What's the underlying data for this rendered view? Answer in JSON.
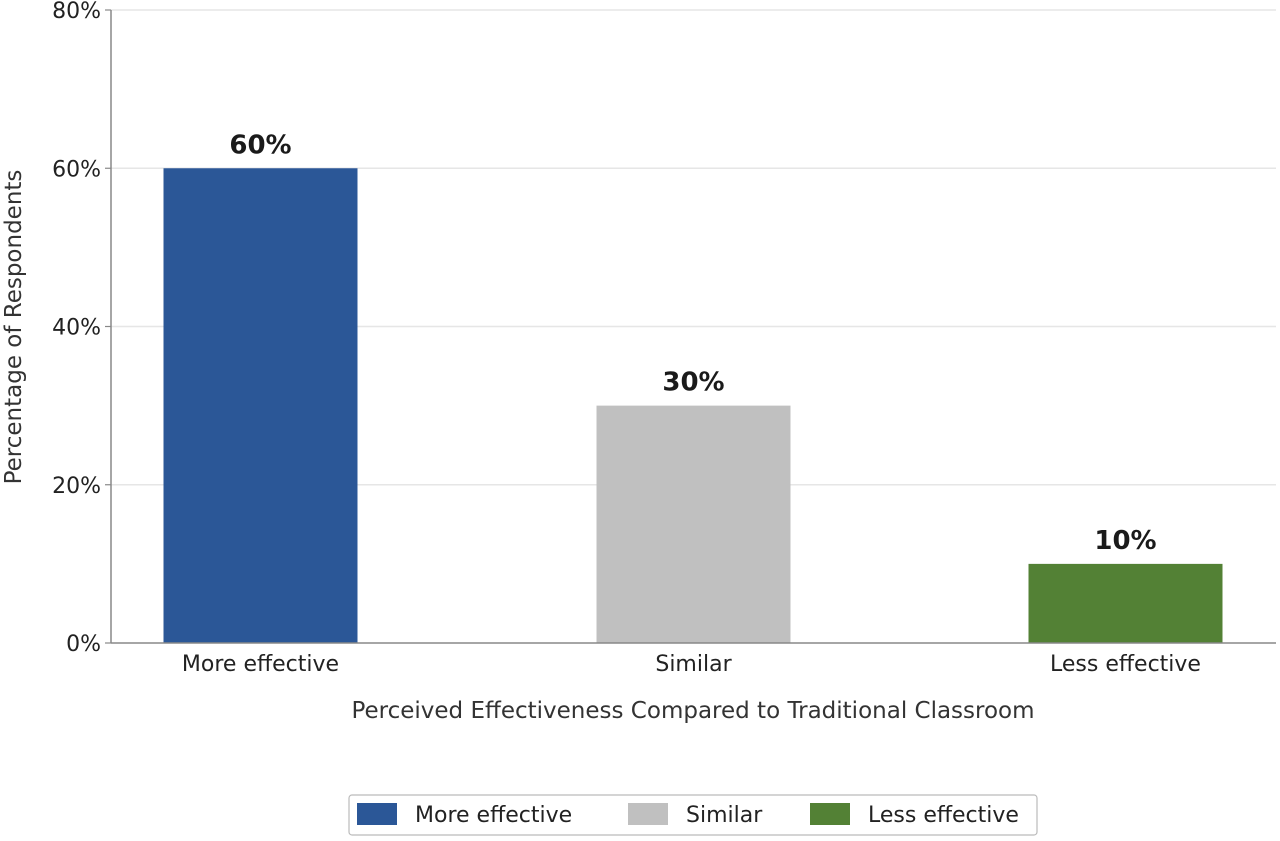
{
  "chart_data": {
    "type": "bar",
    "categories": [
      "More effective",
      "Similar",
      "Less effective"
    ],
    "values": [
      60,
      30,
      10
    ],
    "value_labels": [
      "60%",
      "30%",
      "10%"
    ],
    "colors": [
      "#2b5797",
      "#c0c0c0",
      "#538135"
    ],
    "title": "",
    "xlabel": "Perceived Effectiveness Compared to Traditional Classroom",
    "ylabel": "Percentage of Respondents",
    "ylim": [
      0,
      80
    ],
    "yticks": [
      0,
      20,
      40,
      60,
      80
    ],
    "ytick_labels": [
      "0%",
      "20%",
      "40%",
      "60%",
      "80%"
    ],
    "grid": "horizontal",
    "legend": {
      "position": "bottom-center",
      "entries": [
        "More effective",
        "Similar",
        "Less effective"
      ]
    }
  }
}
